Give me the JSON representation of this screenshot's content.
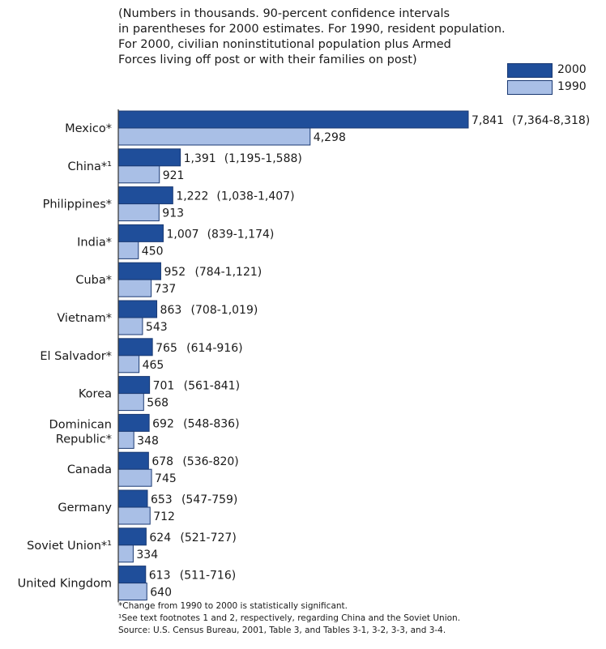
{
  "subtitle": "(Numbers in thousands. 90-percent confidence intervals\nin parentheses for 2000 estimates. For 1990, resident population.\nFor 2000, civilian noninstitutional population plus Armed\nForces living off post or with their families on post)",
  "colors": {
    "series_2000": "#1f4e9a",
    "series_1990": "#a9bfe6",
    "border": "#1b3a73",
    "axis": "#333333"
  },
  "footnotes": {
    "note1": "*Change from 1990 to 2000 is statistically significant.",
    "note2": "¹See text footnotes 1 and 2, respectively, regarding China and the Soviet Union.",
    "note3": "Source: U.S. Census Bureau, 2001, Table 3, and Tables 3-1, 3-2, 3-3, and 3-4."
  },
  "chart_data": {
    "type": "bar",
    "orientation": "horizontal",
    "categories": [
      [
        "Mexico*"
      ],
      [
        "China*¹"
      ],
      [
        "Philippines*"
      ],
      [
        "India*"
      ],
      [
        "Cuba*"
      ],
      [
        "Vietnam*"
      ],
      [
        "El Salvador*"
      ],
      [
        "Korea"
      ],
      [
        "Dominican",
        "Republic*"
      ],
      [
        "Canada"
      ],
      [
        "Germany"
      ],
      [
        "Soviet Union*¹"
      ],
      [
        "United Kingdom"
      ]
    ],
    "series": [
      {
        "name": "2000",
        "values": [
          7841,
          1391,
          1222,
          1007,
          952,
          863,
          765,
          701,
          692,
          678,
          653,
          624,
          613
        ],
        "labels": [
          "7,841",
          "1,391",
          "1,222",
          "1,007",
          "952",
          "863",
          "765",
          "701",
          "692",
          "678",
          "653",
          "624",
          "613"
        ],
        "intervals": [
          "(7,364-8,318)",
          "(1,195-1,588)",
          "(1,038-1,407)",
          "(839-1,174)",
          "(784-1,121)",
          "(708-1,019)",
          "(614-916)",
          "(561-841)",
          "(548-836)",
          "(536-820)",
          "(547-759)",
          "(521-727)",
          "(511-716)"
        ]
      },
      {
        "name": "1990",
        "values": [
          4298,
          921,
          913,
          450,
          737,
          543,
          465,
          568,
          348,
          745,
          712,
          334,
          640
        ],
        "labels": [
          "4,298",
          "921",
          "913",
          "450",
          "737",
          "543",
          "465",
          "568",
          "348",
          "745",
          "712",
          "334",
          "640"
        ]
      }
    ],
    "xlim": [
      0,
      7841
    ],
    "grid": false,
    "legend_position": "top-right"
  }
}
